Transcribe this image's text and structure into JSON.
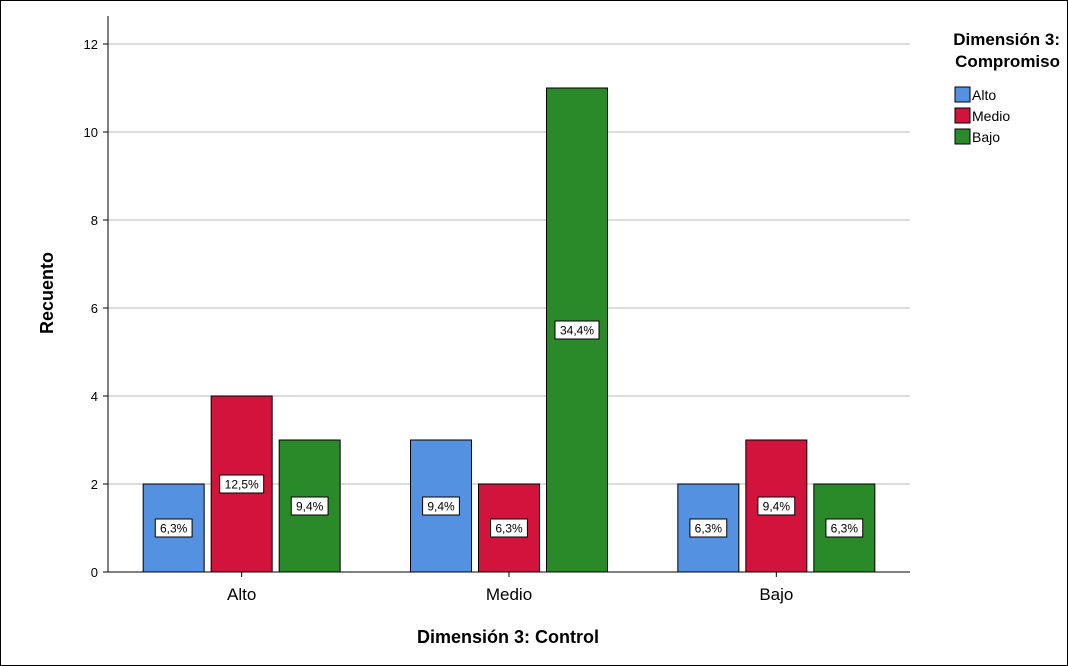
{
  "chart_data": {
    "type": "bar",
    "categories": [
      "Alto",
      "Medio",
      "Bajo"
    ],
    "series": [
      {
        "name": "Alto",
        "color": "#5591e1",
        "values": [
          2,
          3,
          2
        ],
        "labels": [
          "6,3%",
          "9,4%",
          "6,3%"
        ]
      },
      {
        "name": "Medio",
        "color": "#d2143c",
        "values": [
          4,
          2,
          3
        ],
        "labels": [
          "12,5%",
          "6,3%",
          "9,4%"
        ]
      },
      {
        "name": "Bajo",
        "color": "#2a8a2a",
        "values": [
          3,
          11,
          2
        ],
        "labels": [
          "9,4%",
          "34,4%",
          "6,3%"
        ]
      }
    ],
    "xlabel": "Dimensión 3: Control",
    "ylabel": "Recuento",
    "ylim": [
      0,
      12
    ],
    "yticks": [
      "0",
      "2",
      "4",
      "6",
      "8",
      "10",
      "12"
    ],
    "grid": true,
    "legend": {
      "title_lines": [
        "Dimensión 3:",
        "Compromiso"
      ],
      "placement": "top-right"
    }
  }
}
